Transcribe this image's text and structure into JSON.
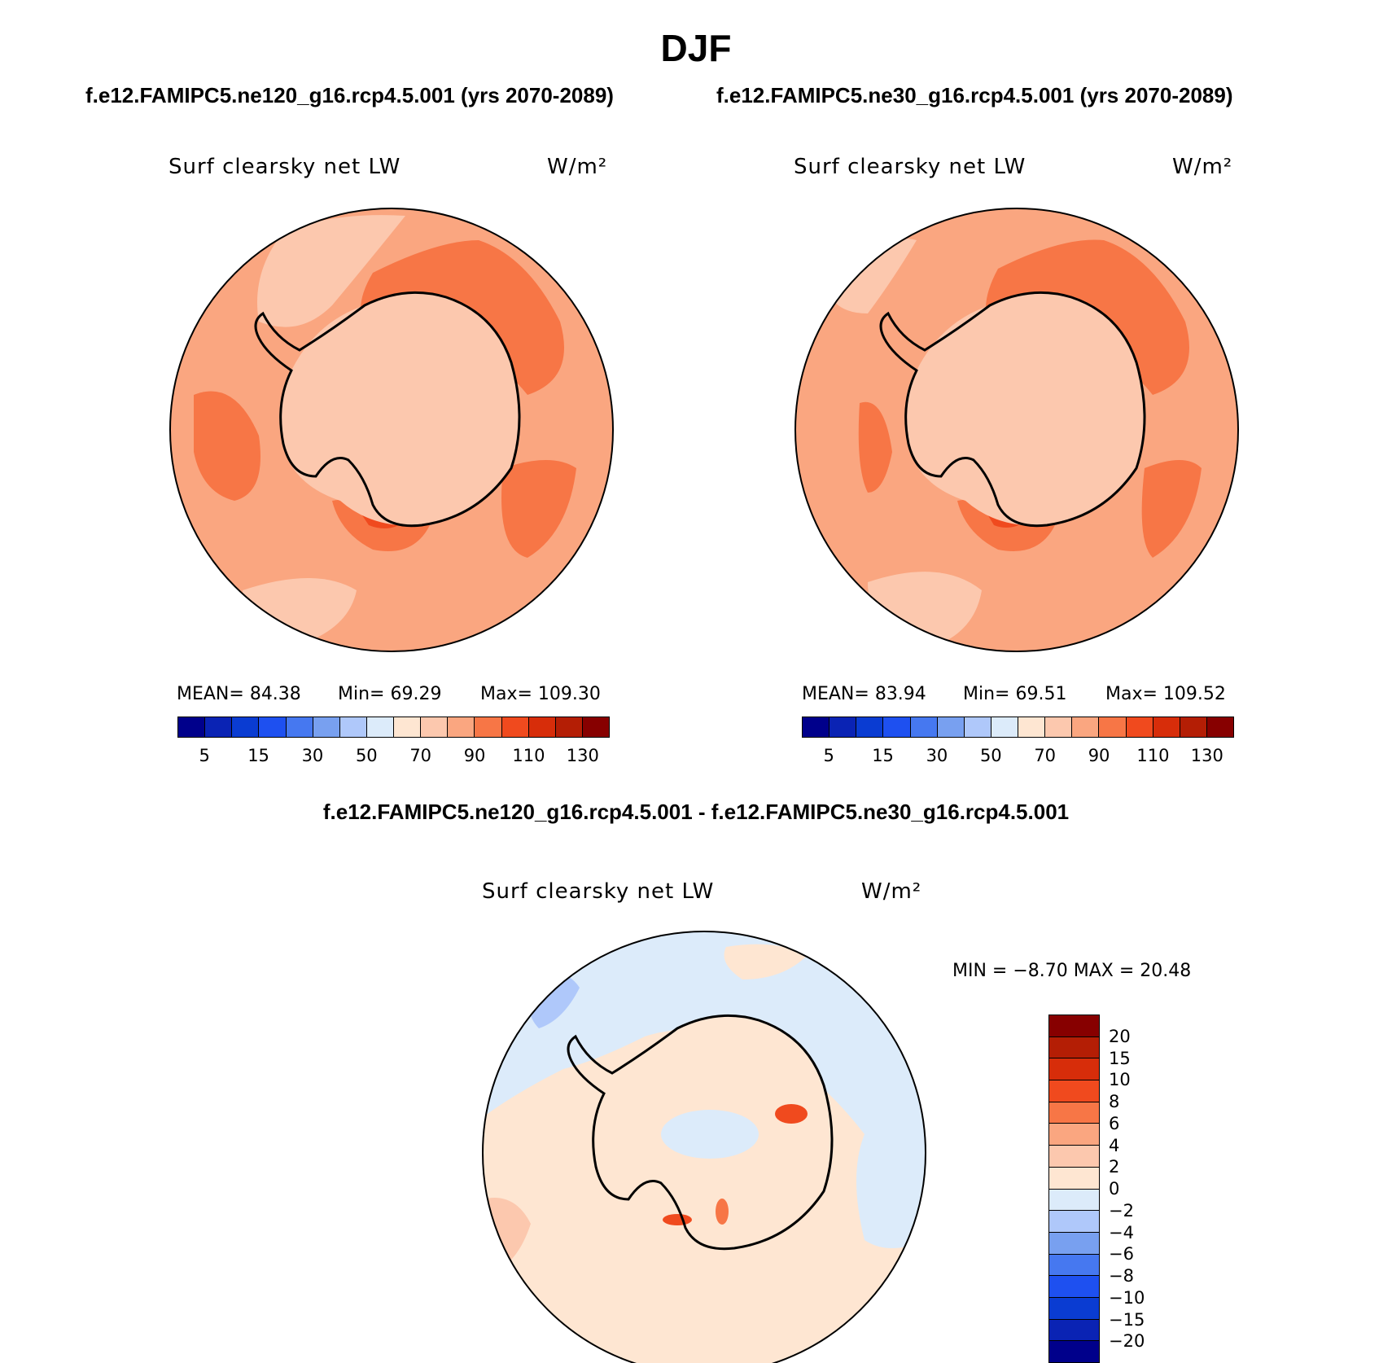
{
  "title": "DJF",
  "panels": [
    {
      "case_title": "f.e12.FAMIPC5.ne120_g16.rcp4.5.001 (yrs 2070-2089)",
      "variable": "Surf clearsky net LW",
      "units": "W/m²",
      "stats": {
        "mean": "MEAN=  84.38",
        "min": "Min=  69.29",
        "max": "Max= 109.30"
      }
    },
    {
      "case_title": "f.e12.FAMIPC5.ne30_g16.rcp4.5.001 (yrs 2070-2089)",
      "variable": "Surf clearsky net LW",
      "units": "W/m²",
      "stats": {
        "mean": "MEAN=  83.94",
        "min": "Min=  69.51",
        "max": "Max= 109.52"
      }
    }
  ],
  "colorbar_top": {
    "colors": [
      "#00008b",
      "#0a23b4",
      "#0a3cd2",
      "#1e50f0",
      "#4678f0",
      "#78a0f0",
      "#afc8fa",
      "#dcebfa",
      "#fee6d2",
      "#fcc8ae",
      "#faa680",
      "#f77646",
      "#f04a1e",
      "#d72d0a",
      "#b41e05",
      "#870000"
    ],
    "labels": [
      "5",
      "15",
      "30",
      "50",
      "70",
      "90",
      "110",
      "130"
    ]
  },
  "diff_panel": {
    "title": "f.e12.FAMIPC5.ne120_g16.rcp4.5.001 - f.e12.FAMIPC5.ne30_g16.rcp4.5.001",
    "variable": "Surf clearsky net LW",
    "units": "W/m²",
    "minmax": "MIN =  −8.70  MAX =   20.48",
    "colors": [
      "#870000",
      "#b41e05",
      "#d72d0a",
      "#f04a1e",
      "#f77646",
      "#faa680",
      "#fcc8ae",
      "#fee6d2",
      "#dcebfa",
      "#afc8fa",
      "#78a0f0",
      "#4678f0",
      "#1e50f0",
      "#0a3cd2",
      "#0a23b4",
      "#00008b"
    ],
    "labels": [
      "20",
      "15",
      "10",
      "8",
      "6",
      "4",
      "2",
      "0",
      "−2",
      "−4",
      "−6",
      "−8",
      "−10",
      "−15",
      "−20"
    ]
  }
}
